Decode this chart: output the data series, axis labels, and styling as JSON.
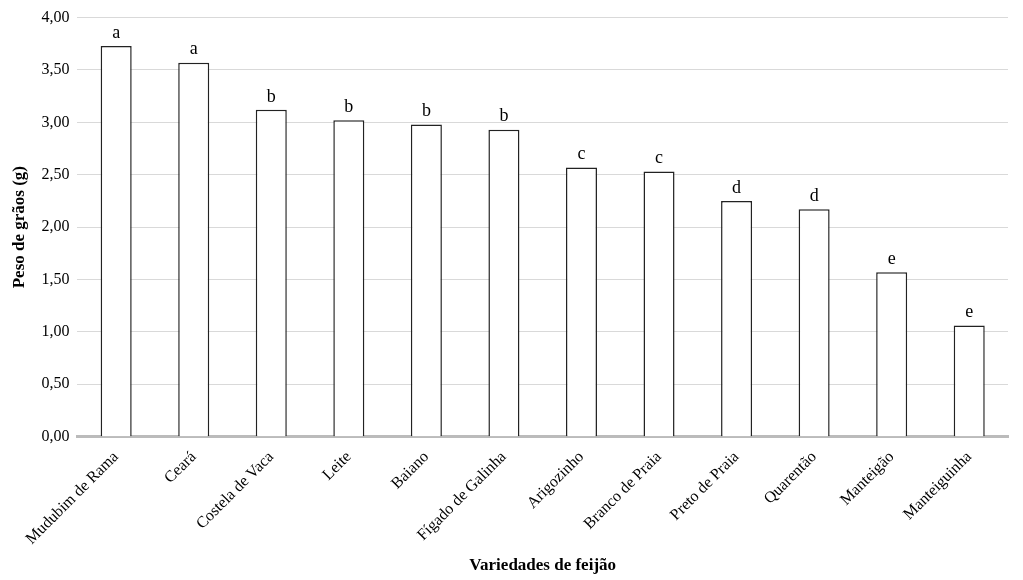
{
  "chart_data": {
    "type": "bar",
    "xlabel": "Variedades de feijão",
    "ylabel": "Peso de grãos (g)",
    "categories": [
      "Mudubim de Rama",
      "Ceará",
      "Costela de Vaca",
      "Leite",
      "Baiano",
      "Fígado de Galinha",
      "Arigozinho",
      "Branco de Praia",
      "Preto de Praia",
      "Quarentão",
      "Manteigão",
      "Manteiguinha"
    ],
    "values": [
      3.73,
      3.57,
      3.12,
      3.02,
      2.98,
      2.93,
      2.57,
      2.53,
      2.25,
      2.17,
      1.57,
      1.06
    ],
    "value_labels": [
      "a",
      "a",
      "b",
      "b",
      "b",
      "b",
      "c",
      "c",
      "d",
      "d",
      "e",
      "e"
    ],
    "color": "#ffffff",
    "ylim": [
      0,
      4
    ],
    "yticks": [
      {
        "value": 0,
        "label": "0,00"
      },
      {
        "value": 0.5,
        "label": "0,50"
      },
      {
        "value": 1,
        "label": "1,00"
      },
      {
        "value": 1.5,
        "label": "1,50"
      },
      {
        "value": 2,
        "label": "2,00"
      },
      {
        "value": 2.5,
        "label": "2,50"
      },
      {
        "value": 3,
        "label": "3,00"
      },
      {
        "value": 3.5,
        "label": "3,50"
      },
      {
        "value": 4,
        "label": "4,00"
      }
    ],
    "grid": "y"
  }
}
